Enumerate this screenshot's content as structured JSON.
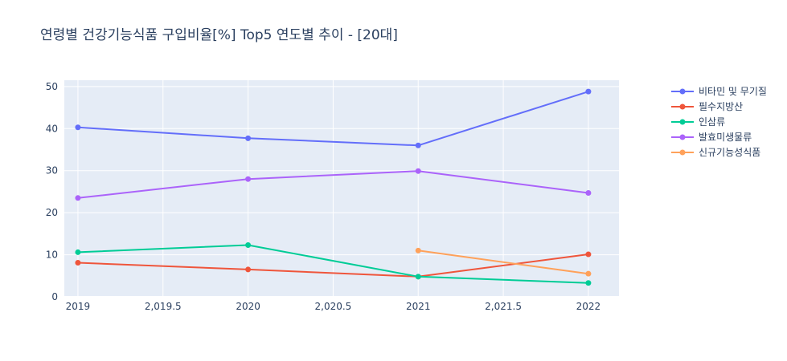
{
  "chart_data": {
    "type": "line",
    "title": "연령별 건강기능식품 구입비율[%] Top5 연도별 추이 - [20대]",
    "xlabel": "",
    "ylabel": "",
    "xlim": [
      2018.92,
      2022.18
    ],
    "ylim": [
      0,
      51.5
    ],
    "x_ticks": [
      2019,
      2019.5,
      2020,
      2020.5,
      2021,
      2021.5,
      2022
    ],
    "x_tick_labels": [
      "2019",
      "2,019.5",
      "2020",
      "2,020.5",
      "2021",
      "2,021.5",
      "2022"
    ],
    "y_ticks": [
      0,
      10,
      20,
      30,
      40,
      50
    ],
    "y_tick_labels": [
      "0",
      "10",
      "20",
      "30",
      "40",
      "50"
    ],
    "grid": true,
    "legend_position": "top-right",
    "series": [
      {
        "name": "비타민 및 무기질",
        "color": "#636efa",
        "x": [
          2019,
          2020,
          2021,
          2022
        ],
        "values": [
          40.3,
          37.7,
          36.0,
          48.8
        ]
      },
      {
        "name": "필수지방산",
        "color": "#ef553b",
        "x": [
          2019,
          2020,
          2021,
          2022
        ],
        "values": [
          8.1,
          6.5,
          4.8,
          10.1
        ]
      },
      {
        "name": "인삼류",
        "color": "#00cc96",
        "x": [
          2019,
          2020,
          2021,
          2022
        ],
        "values": [
          10.6,
          12.3,
          4.8,
          3.3
        ]
      },
      {
        "name": "발효미생물류",
        "color": "#ab63fa",
        "x": [
          2019,
          2020,
          2021,
          2022
        ],
        "values": [
          23.5,
          28.0,
          29.9,
          24.7
        ]
      },
      {
        "name": "신규기능성식품",
        "color": "#ffa15a",
        "x": [
          2021,
          2022
        ],
        "values": [
          11.0,
          5.5
        ]
      }
    ]
  }
}
